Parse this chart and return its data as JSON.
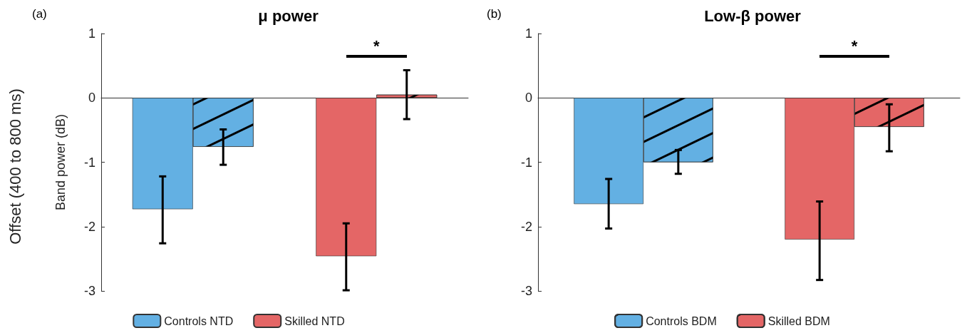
{
  "chart_data": [
    {
      "type": "bar",
      "title": "μ power",
      "subtitle": "(a)",
      "ylabel": "Band power (dB)",
      "categories": [
        null,
        null
      ],
      "series": [
        {
          "name": "Controls NTD",
          "color": "#63b0e3",
          "values": [
            -1.73,
            null
          ],
          "errors": [
            [
              -2.26,
              -1.22
            ],
            null
          ]
        },
        {
          "color": "#63b0e3",
          "values": [
            -0.76,
            null
          ],
          "errors": [
            [
              -1.04,
              -0.49
            ],
            null
          ]
        },
        {
          "name": "Skilled NTD",
          "color": "#e46666",
          "values": [
            null,
            -2.46
          ],
          "errors": [
            null,
            [
              -2.99,
              -1.95
            ]
          ]
        },
        {
          "color": "#e46666",
          "values": [
            null,
            0.05
          ],
          "errors": [
            null,
            [
              -0.33,
              0.43
            ]
          ]
        }
      ],
      "ylim": [
        -3,
        1
      ],
      "yticks": [
        -3,
        -2,
        -1,
        0,
        1
      ],
      "legend": "bottom",
      "annotations": [
        "*",
        "Offset (400 to 800 ms)"
      ]
    },
    {
      "type": "bar",
      "title": "Low-β power",
      "subtitle": "(b)",
      "categories": [
        null,
        null
      ],
      "series": [
        {
          "color": "#63b0e3",
          "values": [
            -1.65,
            null
          ],
          "errors": [
            [
              -2.03,
              -1.26
            ],
            null
          ]
        },
        {
          "name": "Controls BDM",
          "color": "#63b0e3",
          "values": [
            -1.0,
            null
          ],
          "errors": [
            [
              -1.18,
              -0.81
            ],
            null
          ]
        },
        {
          "color": "#e46666",
          "values": [
            null,
            -2.2
          ],
          "errors": [
            null,
            [
              -2.83,
              -1.61
            ]
          ]
        },
        {
          "name": "Skilled BDM",
          "color": "#e46666",
          "values": [
            null,
            -0.45
          ],
          "errors": [
            null,
            [
              -0.83,
              -0.1
            ]
          ]
        }
      ],
      "ylim": [
        -3,
        1
      ],
      "yticks": [
        -3,
        -2,
        -1,
        0,
        1
      ],
      "legend": "bottom",
      "annotations": [
        "*"
      ]
    }
  ]
}
